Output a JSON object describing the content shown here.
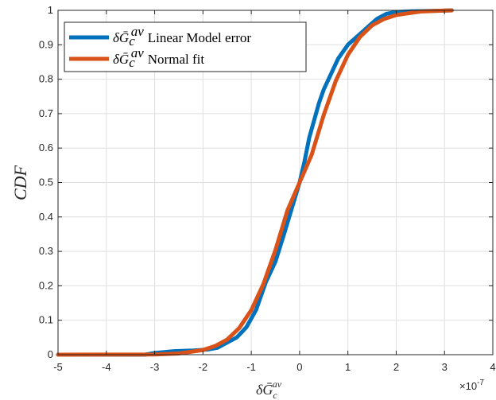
{
  "chart_data": {
    "type": "line",
    "xlabel": "δḠ",
    "xlabel_sub": "c",
    "xlabel_sup": "av",
    "ylabel": "CDF",
    "x_exponent_base": "×10",
    "x_exponent_power": "-7",
    "xlim": [
      -5,
      4
    ],
    "ylim": [
      0,
      1
    ],
    "xticks": [
      "-5",
      "-4",
      "-3",
      "-2",
      "-1",
      "0",
      "1",
      "2",
      "3",
      "4"
    ],
    "yticks": [
      "0",
      "0.1",
      "0.2",
      "0.3",
      "0.4",
      "0.5",
      "0.6",
      "0.7",
      "0.8",
      "0.9",
      "1"
    ],
    "grid": true,
    "legend_position": "top-left",
    "series": [
      {
        "name": "δḠ",
        "name_sub": "c",
        "name_sup": "av",
        "name_suffix": "Linear Model error",
        "color": "#0072BD",
        "x": [
          -5.0,
          -3.2,
          -3.0,
          -2.6,
          -2.2,
          -1.9,
          -1.7,
          -1.5,
          -1.3,
          -1.1,
          -0.9,
          -0.7,
          -0.5,
          -0.3,
          -0.15,
          0.0,
          0.1,
          0.2,
          0.3,
          0.4,
          0.5,
          0.6,
          0.7,
          0.8,
          0.9,
          1.0,
          1.2,
          1.4,
          1.6,
          1.8,
          2.0,
          2.3,
          2.6,
          3.0,
          3.15
        ],
        "y": [
          0.0,
          0.0,
          0.005,
          0.01,
          0.012,
          0.015,
          0.02,
          0.035,
          0.05,
          0.08,
          0.13,
          0.21,
          0.27,
          0.36,
          0.43,
          0.5,
          0.56,
          0.63,
          0.68,
          0.73,
          0.77,
          0.8,
          0.83,
          0.86,
          0.88,
          0.9,
          0.925,
          0.95,
          0.975,
          0.99,
          0.995,
          0.997,
          0.998,
          0.999,
          1.0
        ]
      },
      {
        "name": "δḠ",
        "name_sub": "c",
        "name_sup": "av",
        "name_suffix": "Normal fit",
        "color": "#D95319",
        "x": [
          -5.0,
          -3.0,
          -2.5,
          -2.0,
          -1.75,
          -1.5,
          -1.25,
          -1.0,
          -0.75,
          -0.5,
          -0.25,
          0.0,
          0.25,
          0.5,
          0.75,
          1.0,
          1.25,
          1.5,
          1.75,
          2.0,
          2.5,
          3.0,
          3.15
        ],
        "y": [
          0.0,
          0.0007,
          0.0034,
          0.0135,
          0.025,
          0.0438,
          0.0772,
          0.1292,
          0.2047,
          0.3038,
          0.4194,
          0.5,
          0.5806,
          0.6962,
          0.7953,
          0.8708,
          0.9228,
          0.9562,
          0.975,
          0.9865,
          0.9966,
          0.9993,
          0.9996
        ]
      }
    ]
  }
}
